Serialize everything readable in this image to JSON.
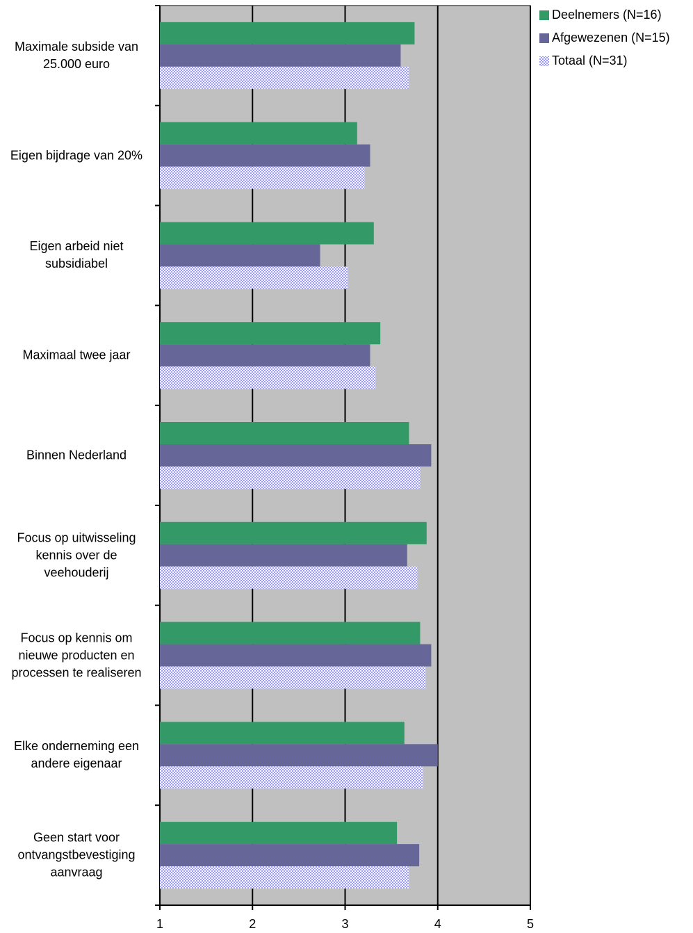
{
  "chart_data": {
    "type": "hbar",
    "categories": [
      "Maximale subside van 25.000 euro",
      "Eigen bijdrage van 20%",
      "Eigen arbeid niet subsidiabel",
      "Maximaal twee jaar",
      "Binnen Nederland",
      "Focus op uitwisseling kennis over de veehouderij",
      "Focus op kennis om nieuwe producten en processen te realiseren",
      "Elke onderneming een andere eigenaar",
      "Geen start voor ontvangstbevestiging aanvraag"
    ],
    "series": [
      {
        "name": "Deelnemers (N=16)",
        "color": "#339966",
        "values": [
          3.75,
          3.13,
          3.31,
          3.38,
          3.69,
          3.88,
          3.81,
          3.64,
          3.56
        ]
      },
      {
        "name": "Afgewezenen (N=15)",
        "color": "#666699",
        "values": [
          3.6,
          3.27,
          2.73,
          3.27,
          3.93,
          3.67,
          3.93,
          4.0,
          3.8
        ]
      },
      {
        "name": "Totaal (N=31)",
        "color": "#9999ff",
        "pattern": true,
        "values": [
          3.69,
          3.21,
          3.03,
          3.33,
          3.81,
          3.78,
          3.87,
          3.84,
          3.69
        ]
      }
    ],
    "xlim": [
      1,
      5
    ],
    "xticks": [
      1,
      2,
      3,
      4,
      5
    ],
    "grid": true,
    "legend": "right"
  }
}
